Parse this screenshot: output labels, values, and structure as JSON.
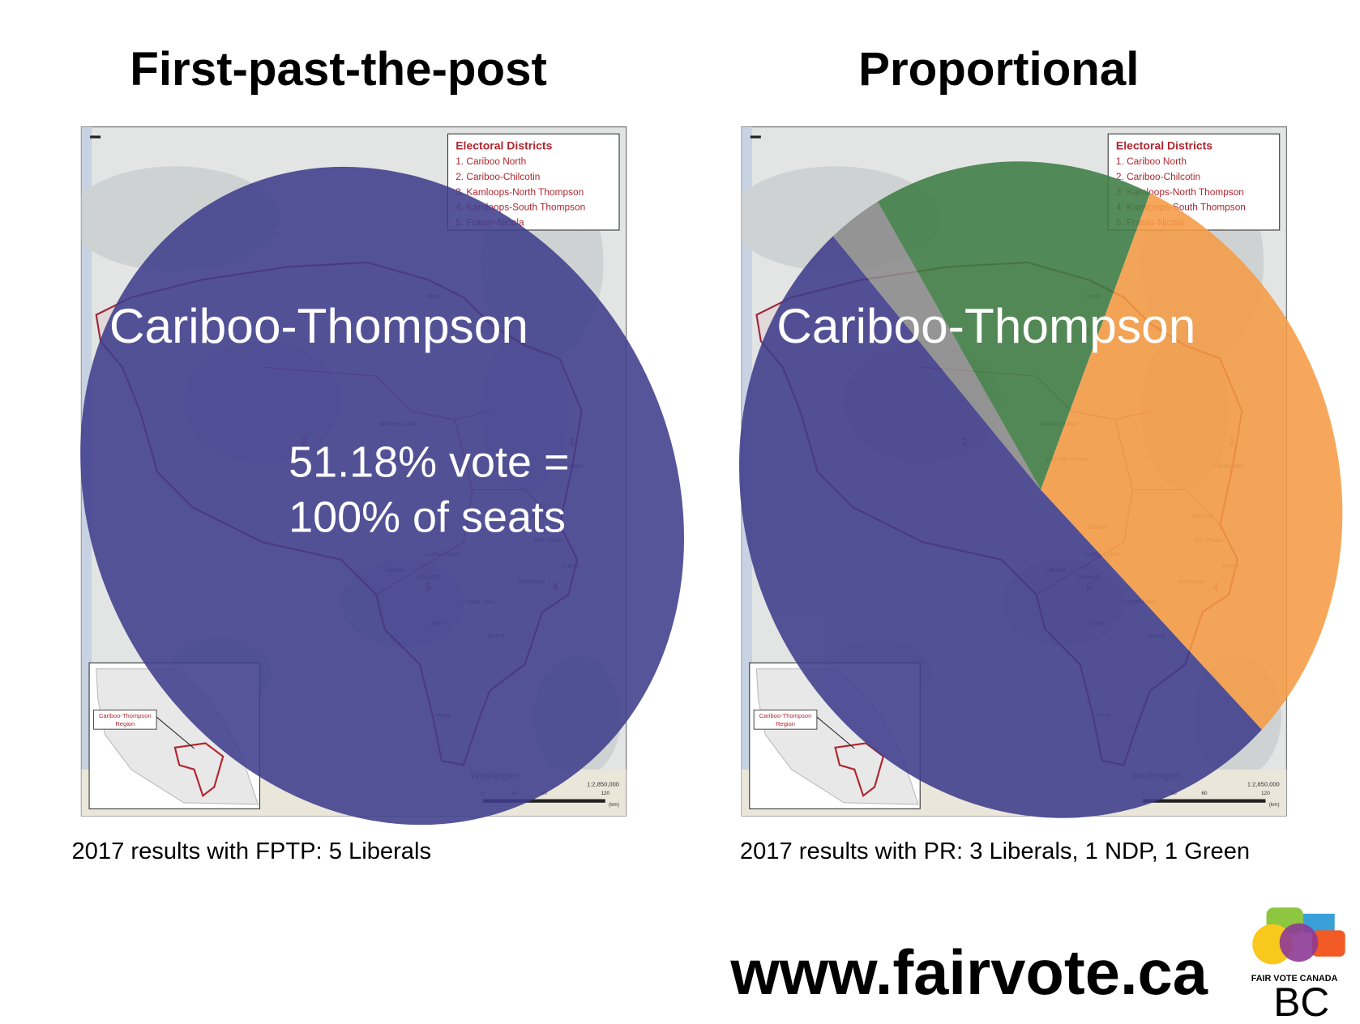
{
  "panels": [
    {
      "title": "First-past-the-post",
      "overlay_label": "Cariboo-Thompson",
      "overlay_note": [
        "51.18% vote =",
        "100% of seats"
      ],
      "overlay_color": "#3f3d8c",
      "caption": "2017 results with FPTP: 5 Liberals"
    },
    {
      "title": "Proportional",
      "overlay_label": "Cariboo-Thompson",
      "overlay_pie": {
        "values": [
          51,
          3,
          15,
          31
        ],
        "colors": [
          "#3f3d8c",
          "#8c8c8c",
          "#3f7d45",
          "#f59c45"
        ]
      },
      "caption": "2017 results with PR: 3 Liberals, 1 NDP, 1 Green"
    }
  ],
  "map": {
    "legend_title": "Electoral Districts",
    "legend_items": [
      "1. Cariboo North",
      "2. Cariboo-Chilcotin",
      "3. Kamloops-North Thompson",
      "4. Kamloops-South Thompson",
      "5. Fraser-Nicola"
    ],
    "places": [
      "Wells",
      "Williams Lake",
      "100 Mile House",
      "Clinton",
      "Cache Creek",
      "Ashcroft",
      "Lillooet",
      "Logan Lake",
      "Lytton",
      "Merritt",
      "Hope",
      "Kamloops",
      "Chase",
      "Sun Peaks",
      "Barriere",
      "Clearwater"
    ],
    "district_numbers": [
      "1",
      "2",
      "3",
      "4",
      "5"
    ],
    "inset_label": [
      "Cariboo-Thompson",
      "Region"
    ],
    "country": "Washington",
    "scale_ratio": "1:2,850,000",
    "scale_ticks": [
      "0",
      "30",
      "60",
      "120"
    ],
    "scale_unit": "(km)"
  },
  "footer": {
    "url": "www.fairvote.ca",
    "logo_line": "FAIR VOTE CANADA",
    "logo_mark": "BC"
  }
}
